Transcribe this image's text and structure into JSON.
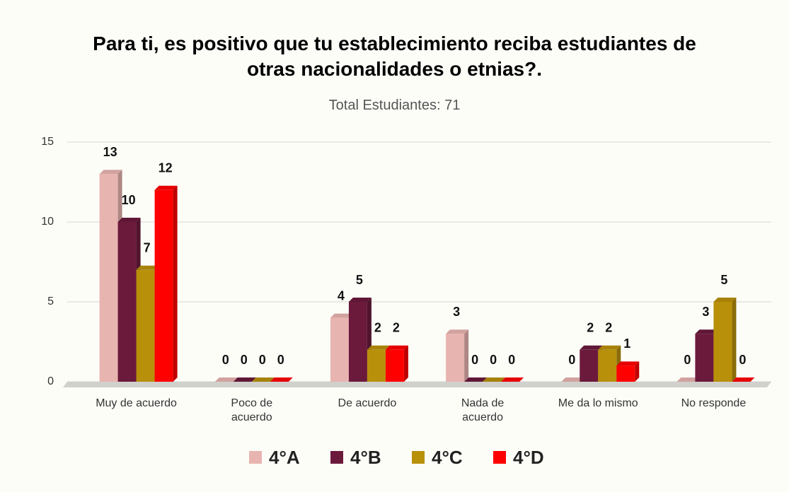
{
  "chart_data": {
    "type": "bar3d",
    "title": "Para ti, es positivo que tu establecimiento reciba estudiantes de\notras nacionalidades o etnias?.",
    "subtitle": "Total Estudiantes: 71",
    "categories": [
      "Muy de acuerdo",
      "Poco de\nacuerdo",
      "De acuerdo",
      "Nada de\nacuerdo",
      "Me da lo mismo",
      "No responde"
    ],
    "series": [
      {
        "name": "4°A",
        "color": "#e8b4b0",
        "values": [
          13,
          0,
          4,
          3,
          0,
          0
        ]
      },
      {
        "name": "4°B",
        "color": "#6b1a3c",
        "values": [
          10,
          0,
          5,
          0,
          2,
          3
        ]
      },
      {
        "name": "4°C",
        "color": "#b8900a",
        "values": [
          7,
          0,
          2,
          0,
          2,
          5
        ]
      },
      {
        "name": "4°D",
        "color": "#ff0000",
        "values": [
          12,
          0,
          2,
          0,
          1,
          0
        ]
      }
    ],
    "ylim": [
      0,
      15
    ],
    "yticks": [
      0,
      5,
      10,
      15
    ],
    "grid": true,
    "legend": "bottom"
  }
}
